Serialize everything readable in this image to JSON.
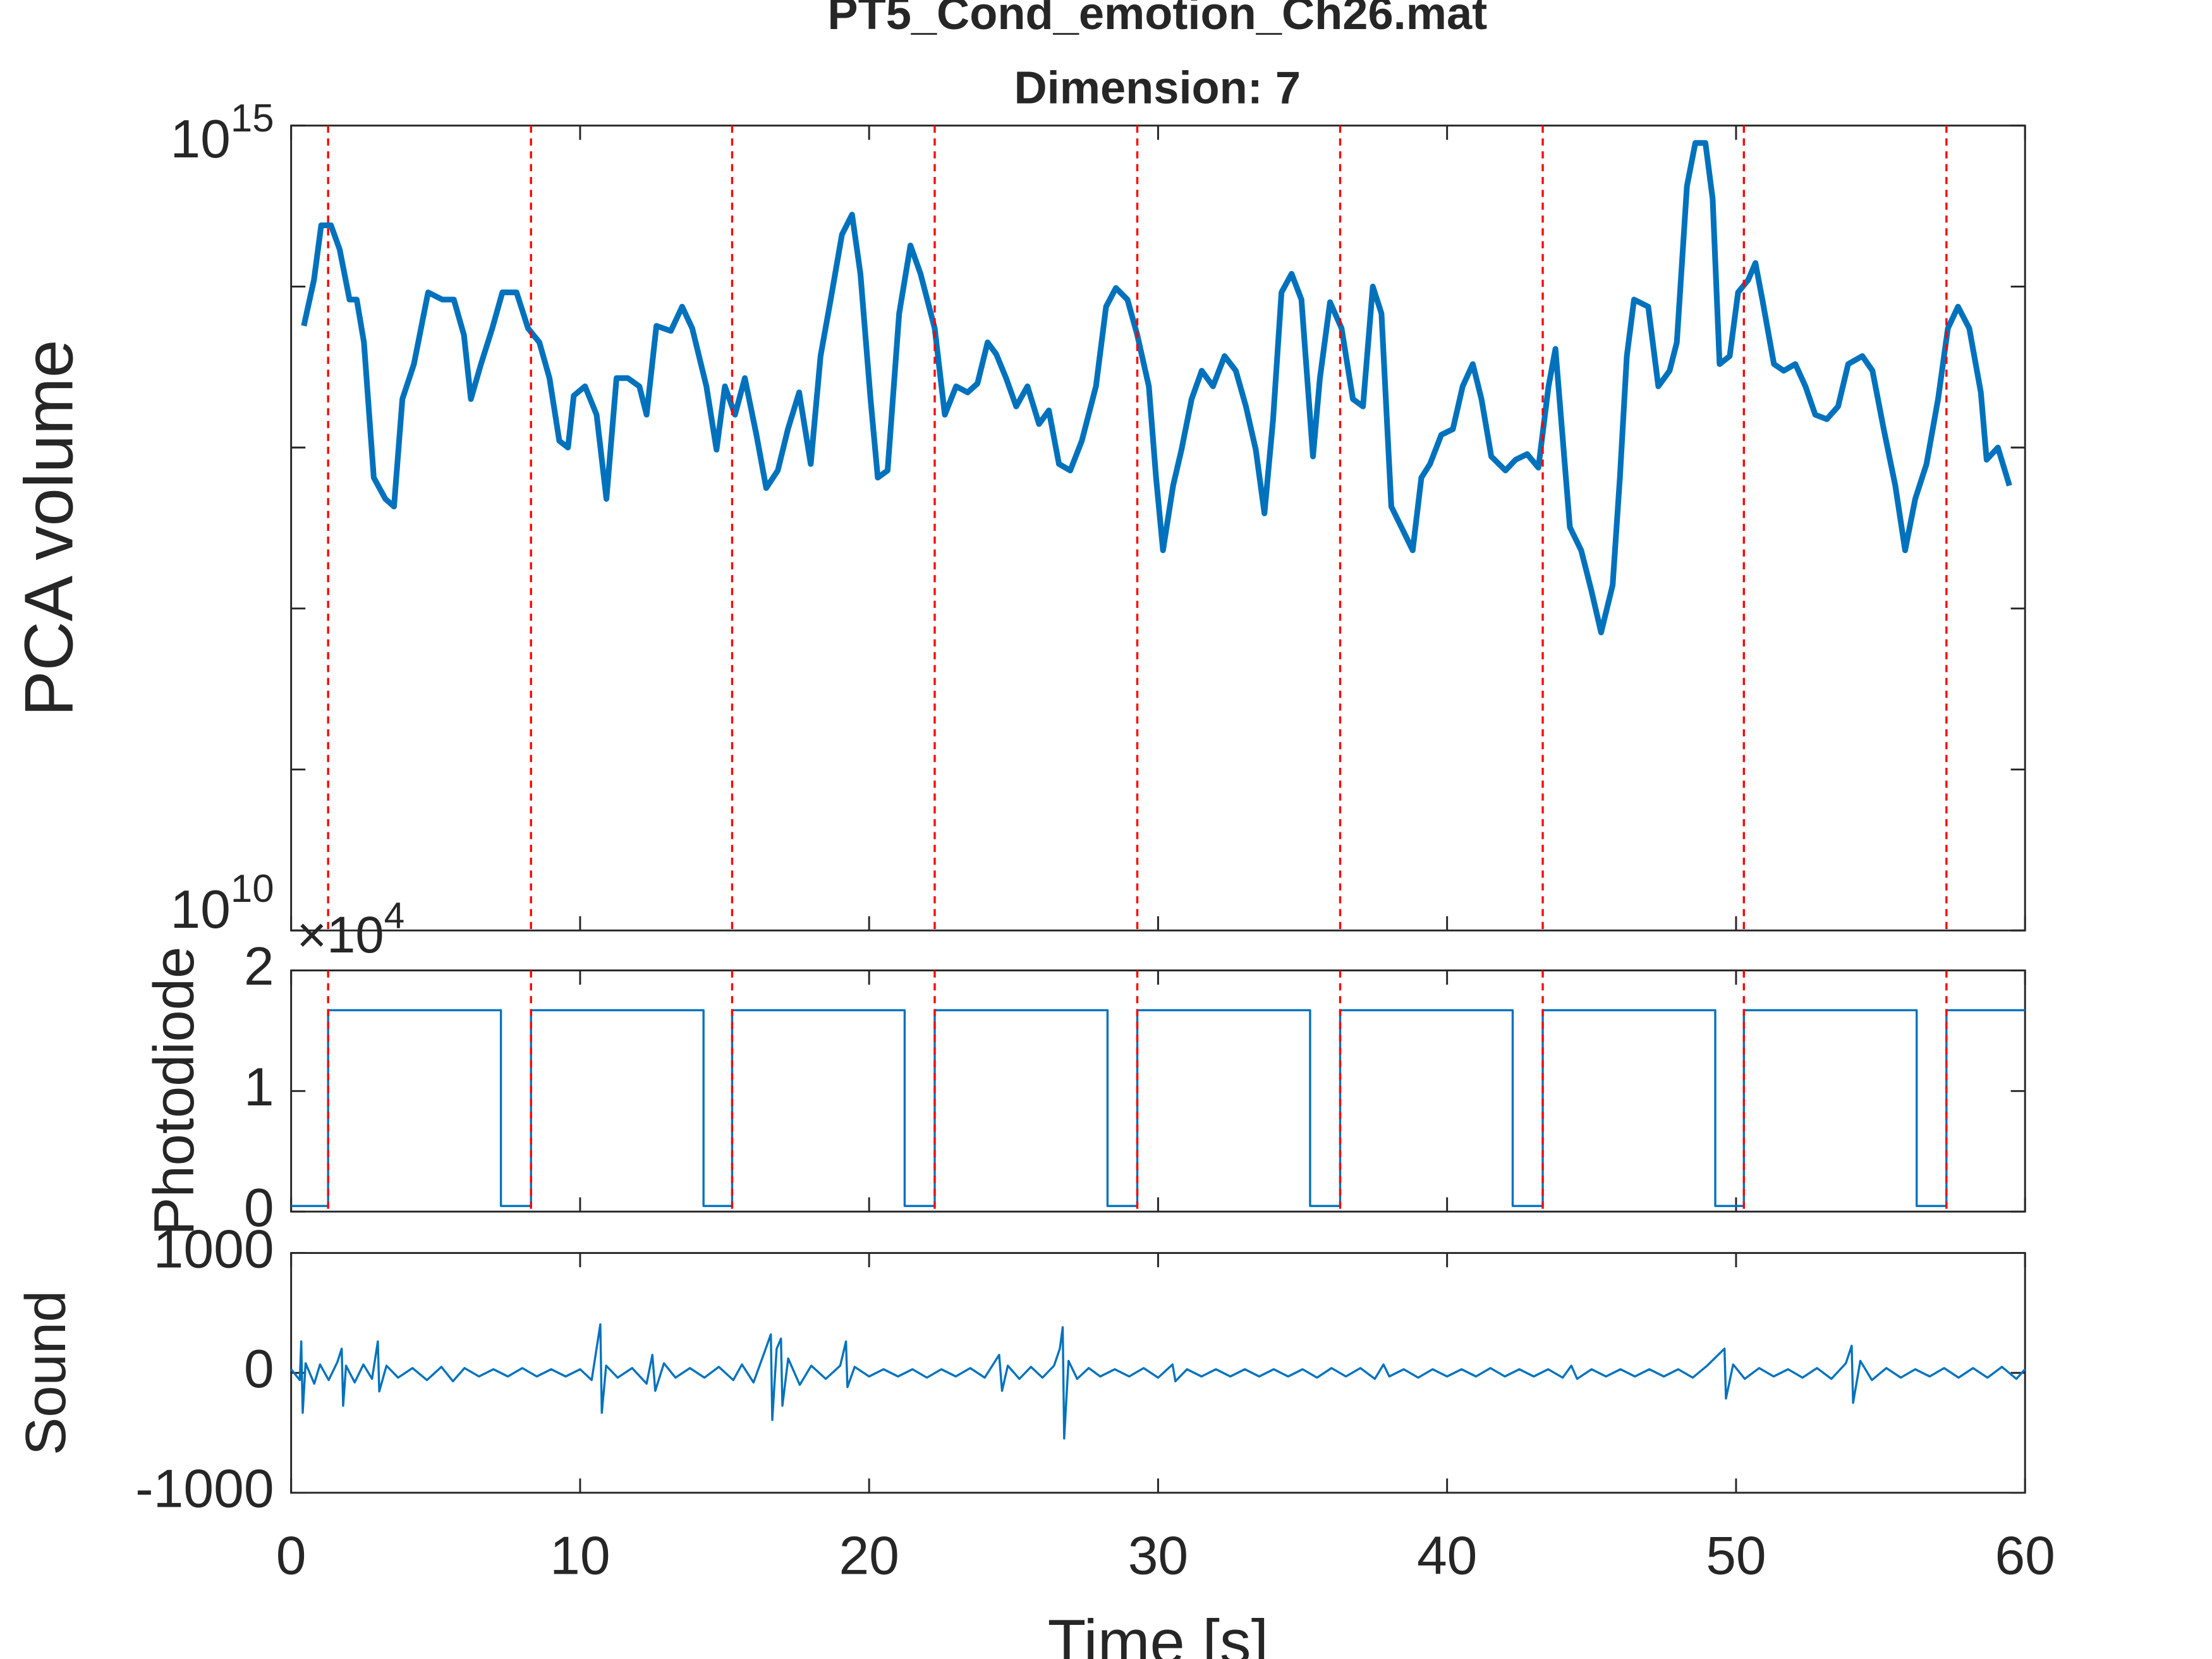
{
  "chart_data": [
    {
      "type": "line",
      "title": "PT5_Cond_emotion_Ch26.mat",
      "subtitle": "Dimension: 7",
      "ylabel": "PCA volume",
      "yscale": "log",
      "xlim": [
        0,
        60
      ],
      "ylim": [
        10000000000.0,
        1000000000000000.0
      ],
      "yticks": [
        {
          "value": 10000000000.0,
          "label": "10^10"
        },
        {
          "value": 100000000000.0,
          "label": null
        },
        {
          "value": 1000000000000.0,
          "label": null
        },
        {
          "value": 10000000000000.0,
          "label": null
        },
        {
          "value": 100000000000000.0,
          "label": null
        },
        {
          "value": 1000000000000000.0,
          "label": "10^15"
        }
      ],
      "color": "#0072bd",
      "x": [
        0.44,
        0.79,
        1.04,
        1.38,
        1.68,
        2.02,
        2.27,
        2.52,
        2.86,
        3.26,
        3.56,
        3.85,
        4.25,
        4.74,
        5.23,
        5.63,
        5.98,
        6.22,
        6.57,
        6.96,
        7.31,
        7.8,
        8.2,
        8.59,
        8.94,
        9.28,
        9.58,
        9.78,
        10.17,
        10.57,
        10.91,
        11.26,
        11.65,
        12.05,
        12.3,
        12.64,
        13.14,
        13.53,
        13.88,
        14.37,
        14.72,
        15.01,
        15.36,
        15.7,
        16.1,
        16.44,
        16.84,
        17.19,
        17.58,
        17.98,
        18.32,
        18.67,
        19.06,
        19.41,
        19.7,
        20.05,
        20.3,
        20.64,
        21.04,
        21.43,
        21.78,
        22.27,
        22.62,
        23.01,
        23.41,
        23.75,
        24.1,
        24.4,
        24.74,
        25.09,
        25.48,
        25.88,
        26.22,
        26.57,
        26.96,
        27.36,
        27.85,
        28.2,
        28.54,
        28.94,
        29.28,
        29.68,
        29.93,
        30.17,
        30.52,
        30.81,
        31.16,
        31.51,
        31.9,
        32.3,
        32.69,
        33.04,
        33.38,
        33.68,
        33.98,
        34.27,
        34.62,
        34.96,
        35.36,
        35.6,
        35.95,
        36.35,
        36.74,
        37.09,
        37.43,
        37.73,
        38.07,
        38.42,
        38.81,
        39.11,
        39.41,
        39.8,
        40.2,
        40.54,
        40.89,
        41.19,
        41.53,
        42.02,
        42.37,
        42.77,
        43.16,
        43.51,
        43.75,
        44.25,
        44.64,
        44.99,
        45.33,
        45.73,
        45.98,
        46.22,
        46.47,
        46.96,
        47.31,
        47.7,
        47.95,
        48.3,
        48.59,
        48.94,
        49.19,
        49.43,
        49.78,
        50.07,
        50.42,
        50.67,
        50.91,
        51.31,
        51.65,
        52.05,
        52.4,
        52.74,
        53.14,
        53.53,
        53.88,
        54.37,
        54.72,
        55.11,
        55.51,
        55.85,
        56.2,
        56.59,
        56.99,
        57.33,
        57.68,
        58.07,
        58.47,
        58.67,
        59.06,
        59.46
      ],
      "values": [
        57000000000000.0,
        110000000000000.0,
        240000000000000.0,
        240000000000000.0,
        170000000000000.0,
        83000000000000.0,
        83000000000000.0,
        45000000000000.0,
        6500000000000.0,
        4800000000000.0,
        4300000000000.0,
        20000000000000.0,
        33000000000000.0,
        92000000000000.0,
        83000000000000.0,
        83000000000000.0,
        50000000000000.0,
        20000000000000.0,
        33000000000000.0,
        55000000000000.0,
        92000000000000.0,
        92000000000000.0,
        55000000000000.0,
        45000000000000.0,
        27000000000000.0,
        11000000000000.0,
        10000000000000.0,
        21000000000000.0,
        24000000000000.0,
        16000000000000.0,
        4800000000000.0,
        27000000000000.0,
        27000000000000.0,
        24000000000000.0,
        16000000000000.0,
        57000000000000.0,
        53000000000000.0,
        75000000000000.0,
        55000000000000.0,
        24000000000000.0,
        9700000000000.0,
        24000000000000.0,
        16000000000000.0,
        27000000000000.0,
        12000000000000.0,
        5600000000000.0,
        7200000000000.0,
        13000000000000.0,
        22000000000000.0,
        7900000000000.0,
        37000000000000.0,
        83000000000000.0,
        210000000000000.0,
        280000000000000.0,
        120000000000000.0,
        20000000000000.0,
        6500000000000.0,
        7200000000000.0,
        68000000000000.0,
        180000000000000.0,
        120000000000000.0,
        55000000000000.0,
        16000000000000.0,
        24000000000000.0,
        22000000000000.0,
        25000000000000.0,
        45000000000000.0,
        38000000000000.0,
        27000000000000.0,
        18000000000000.0,
        24000000000000.0,
        14000000000000.0,
        17000000000000.0,
        7900000000000.0,
        7200000000000.0,
        11000000000000.0,
        24000000000000.0,
        75000000000000.0,
        98000000000000.0,
        83000000000000.0,
        50000000000000.0,
        24000000000000.0,
        6500000000000.0,
        2300000000000.0,
        5800000000000.0,
        9700000000000.0,
        20000000000000.0,
        30000000000000.0,
        24000000000000.0,
        37000000000000.0,
        30000000000000.0,
        18000000000000.0,
        9700000000000.0,
        3900000000000.0,
        15000000000000.0,
        92000000000000.0,
        120000000000000.0,
        83000000000000.0,
        8800000000000.0,
        27000000000000.0,
        80000000000000.0,
        55000000000000.0,
        20000000000000.0,
        18000000000000.0,
        100000000000000.0,
        68000000000000.0,
        4300000000000.0,
        3200000000000.0,
        2300000000000.0,
        6500000000000.0,
        7900000000000.0,
        12000000000000.0,
        13000000000000.0,
        24000000000000.0,
        33000000000000.0,
        20000000000000.0,
        8800000000000.0,
        7200000000000.0,
        8400000000000.0,
        9100000000000.0,
        7500000000000.0,
        24000000000000.0,
        41000000000000.0,
        3200000000000.0,
        2300000000000.0,
        1300000000000.0,
        710000000000.0,
        1400000000000.0,
        6500000000000.0,
        37000000000000.0,
        83000000000000.0,
        75000000000000.0,
        24000000000000.0,
        30000000000000.0,
        45000000000000.0,
        420000000000000.0,
        780000000000000.0,
        780000000000000.0,
        350000000000000.0,
        33000000000000.0,
        37000000000000.0,
        92000000000000.0,
        110000000000000.0,
        140000000000000.0,
        83000000000000.0,
        33000000000000.0,
        30000000000000.0,
        33000000000000.0,
        24000000000000.0,
        16000000000000.0,
        15000000000000.0,
        18000000000000.0,
        33000000000000.0,
        37000000000000.0,
        30000000000000.0,
        13000000000000.0,
        5800000000000.0,
        2300000000000.0,
        4800000000000.0,
        7900000000000.0,
        20000000000000.0,
        55000000000000.0,
        75000000000000.0,
        55000000000000.0,
        22000000000000.0,
        8400000000000.0,
        10000000000000.0,
        5800000000000.0
      ],
      "vlines": {
        "x": [
          1.28,
          8.3,
          15.26,
          22.27,
          29.28,
          36.3,
          43.31,
          50.27,
          57.28
        ],
        "color": "#ff0000"
      }
    },
    {
      "type": "line",
      "ylabel": "Photodiode",
      "xlim": [
        0,
        60
      ],
      "ylim": [
        0,
        20000
      ],
      "yticks": [
        0,
        {
          "value": 10000,
          "label": "1"
        },
        {
          "value": 20000,
          "label": "2"
        }
      ],
      "y_multiplier_label": "×10^4",
      "color": "#0072bd",
      "x": [
        0,
        1.28,
        1.28,
        7.26,
        7.26,
        8.3,
        8.3,
        14.27,
        14.27,
        15.26,
        15.26,
        21.23,
        21.23,
        22.27,
        22.27,
        28.25,
        28.25,
        29.28,
        29.28,
        35.26,
        35.26,
        36.3,
        36.3,
        42.27,
        42.27,
        43.31,
        43.31,
        49.28,
        49.28,
        50.27,
        50.27,
        56.25,
        56.25,
        57.28,
        57.28,
        60
      ],
      "values": [
        470,
        470,
        16700,
        16700,
        470,
        470,
        16700,
        16700,
        470,
        470,
        16700,
        16700,
        470,
        470,
        16700,
        16700,
        470,
        470,
        16700,
        16700,
        470,
        470,
        16700,
        16700,
        470,
        470,
        16700,
        16700,
        470,
        470,
        16700,
        16700,
        470,
        470,
        16700,
        16700
      ],
      "vlines": {
        "x": [
          1.28,
          8.3,
          15.26,
          22.27,
          29.28,
          36.3,
          43.31,
          50.27,
          57.28
        ],
        "color": "#ff0000"
      }
    },
    {
      "type": "line",
      "ylabel": "Sound",
      "xlabel": "Time [s]",
      "xlim": [
        0,
        60
      ],
      "xticks": [
        0,
        10,
        20,
        30,
        40,
        50,
        60
      ],
      "ylim": [
        -1000,
        1000
      ],
      "yticks": [
        -1000,
        0,
        1000
      ],
      "color": "#0072bd",
      "x": [
        0,
        0.3,
        0.35,
        0.4,
        0.5,
        0.8,
        1.0,
        1.3,
        1.6,
        1.75,
        1.8,
        1.9,
        2.2,
        2.5,
        2.8,
        3.0,
        3.05,
        3.3,
        3.7,
        4.2,
        4.7,
        5.2,
        5.6,
        6.0,
        6.5,
        7,
        7.5,
        8,
        8.5,
        9,
        9.5,
        10,
        10.4,
        10.7,
        10.75,
        10.9,
        11.3,
        11.8,
        12.3,
        12.5,
        12.6,
        12.9,
        13.3,
        13.8,
        14.3,
        14.8,
        15.3,
        15.6,
        16.0,
        16.3,
        16.6,
        16.65,
        16.8,
        16.95,
        17.0,
        17.2,
        17.6,
        18,
        18.5,
        19.0,
        19.2,
        19.25,
        19.5,
        20,
        20.5,
        21,
        21.5,
        22,
        22.5,
        23,
        23.5,
        24,
        24.5,
        24.6,
        24.8,
        25.2,
        25.6,
        26,
        26.4,
        26.6,
        26.7,
        26.75,
        26.9,
        27.2,
        27.6,
        28,
        28.5,
        29,
        29.5,
        30,
        30.5,
        30.6,
        31,
        31.5,
        32,
        32.5,
        33,
        33.5,
        34,
        34.5,
        35,
        35.5,
        36,
        36.5,
        37,
        37.5,
        37.8,
        38,
        38.5,
        39,
        39.5,
        40,
        40.5,
        41,
        41.5,
        42,
        42.5,
        43,
        43.5,
        44,
        44.3,
        44.5,
        45,
        45.5,
        46,
        46.5,
        47,
        47.5,
        48,
        48.5,
        49,
        49.6,
        49.65,
        49.9,
        50.3,
        50.8,
        51.3,
        51.8,
        52.3,
        52.8,
        53.3,
        53.8,
        54.0,
        54.05,
        54.3,
        54.7,
        55.2,
        55.7,
        56.2,
        56.7,
        57.2,
        57.7,
        58.2,
        58.7,
        59.2,
        59.7,
        60
      ],
      "values": [
        30,
        -60,
        262,
        -333,
        80,
        -90,
        70,
        -60,
        90,
        202,
        -274,
        60,
        -80,
        70,
        -50,
        262,
        -155,
        60,
        -40,
        40,
        -60,
        50,
        -70,
        40,
        -30,
        30,
        -30,
        40,
        -30,
        30,
        -30,
        30,
        -60,
        405,
        -333,
        60,
        -40,
        40,
        -90,
        150,
        -150,
        80,
        -40,
        40,
        -40,
        50,
        -60,
        70,
        -80,
        120,
        321,
        -393,
        200,
        286,
        -274,
        120,
        -100,
        60,
        -50,
        60,
        262,
        -119,
        50,
        -30,
        30,
        -30,
        30,
        -40,
        30,
        -30,
        40,
        -40,
        150,
        -150,
        60,
        -50,
        50,
        -40,
        60,
        202,
        381,
        -547,
        100,
        -50,
        40,
        -30,
        30,
        -30,
        40,
        -40,
        70,
        -70,
        30,
        -30,
        30,
        -30,
        30,
        -30,
        30,
        -30,
        30,
        -40,
        40,
        -30,
        40,
        -50,
        70,
        -30,
        30,
        -40,
        30,
        -30,
        30,
        -30,
        40,
        -30,
        30,
        -30,
        30,
        -40,
        60,
        -50,
        30,
        -30,
        30,
        -30,
        30,
        -30,
        30,
        -40,
        60,
        202,
        -214,
        70,
        -50,
        40,
        -30,
        30,
        -40,
        40,
        -50,
        80,
        226,
        -250,
        100,
        -60,
        40,
        -40,
        30,
        -30,
        40,
        -40,
        40,
        -40,
        50,
        -50,
        30
      ]
    }
  ]
}
